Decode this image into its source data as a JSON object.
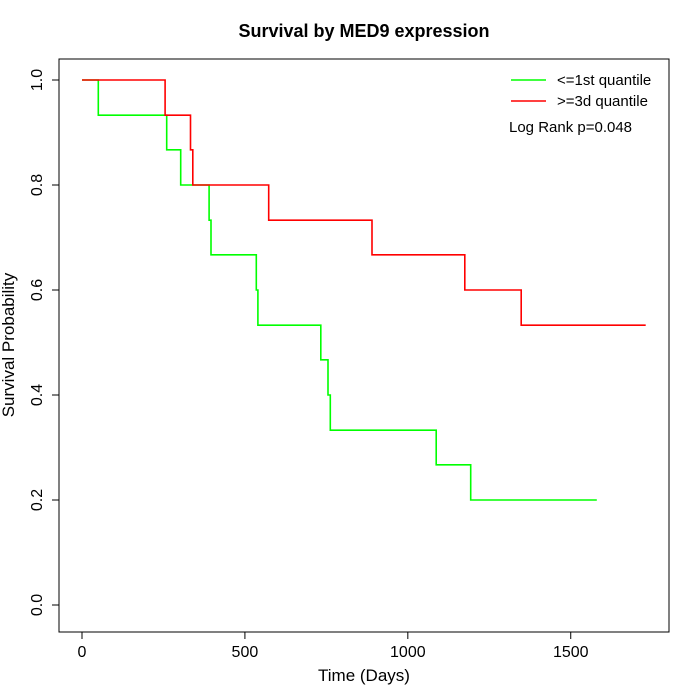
{
  "chart_data": {
    "type": "line",
    "title": "Survival by MED9 expression",
    "xlabel": "Time (Days)",
    "ylabel": "Survival Probability",
    "xlim": [
      0,
      1800
    ],
    "ylim": [
      0,
      1
    ],
    "x_ticks": [
      0,
      500,
      1000,
      1500
    ],
    "x_tick_labels": [
      "0",
      "500",
      "1000",
      "1500"
    ],
    "y_ticks": [
      0,
      0.2,
      0.4,
      0.6,
      0.8,
      1.0
    ],
    "y_tick_labels": [
      "0.0",
      "0.2",
      "0.4",
      "0.6",
      "0.8",
      "1.0"
    ],
    "grid": false,
    "legend_position": "top-right",
    "annotation": "Log Rank p=0.048",
    "series": [
      {
        "name": "<=1st quantile",
        "color": "#00ff00",
        "step": true,
        "x": [
          0,
          50,
          50,
          260,
          260,
          303,
          303,
          390,
          390,
          396,
          396,
          535,
          535,
          540,
          540,
          733,
          733,
          755,
          755,
          762,
          762,
          1087,
          1087,
          1193,
          1193,
          1580
        ],
        "y": [
          1.0,
          1.0,
          0.933,
          0.933,
          0.867,
          0.867,
          0.8,
          0.8,
          0.733,
          0.733,
          0.667,
          0.667,
          0.6,
          0.6,
          0.533,
          0.533,
          0.467,
          0.467,
          0.4,
          0.4,
          0.333,
          0.333,
          0.267,
          0.267,
          0.2,
          0.2
        ]
      },
      {
        "name": ">=3d quantile",
        "color": "#ff0000",
        "step": true,
        "x": [
          0,
          255,
          255,
          333,
          333,
          340,
          340,
          573,
          573,
          890,
          890,
          1175,
          1175,
          1348,
          1348,
          1730
        ],
        "y": [
          1.0,
          1.0,
          0.933,
          0.933,
          0.867,
          0.867,
          0.8,
          0.8,
          0.733,
          0.733,
          0.667,
          0.667,
          0.6,
          0.6,
          0.533,
          0.533
        ]
      }
    ]
  }
}
